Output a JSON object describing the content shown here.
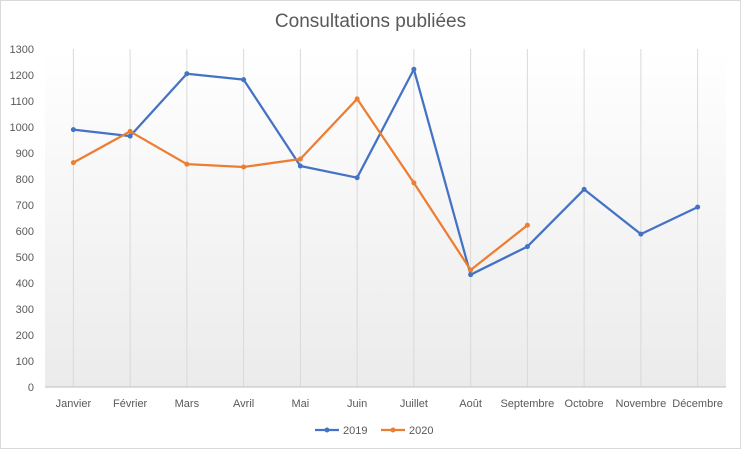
{
  "chart_data": {
    "type": "line",
    "title": "Consultations publiées",
    "xlabel": "",
    "ylabel": "",
    "categories": [
      "Janvier",
      "Février",
      "Mars",
      "Avril",
      "Mai",
      "Juin",
      "Juillet",
      "Août",
      "Septembre",
      "Octobre",
      "Novembre",
      "Décembre"
    ],
    "ylim": [
      0,
      1300
    ],
    "yticks": [
      0,
      100,
      200,
      300,
      400,
      500,
      600,
      700,
      800,
      900,
      1000,
      1100,
      1200,
      1300
    ],
    "grid": "vertical",
    "legend_position": "bottom",
    "series": [
      {
        "name": "2019",
        "color": "#4472c4",
        "values": [
          990,
          965,
          1205,
          1182,
          850,
          805,
          1222,
          432,
          540,
          760,
          588,
          692
        ]
      },
      {
        "name": "2020",
        "color": "#ed7d31",
        "values": [
          863,
          983,
          857,
          846,
          877,
          1108,
          785,
          450,
          622,
          null,
          null,
          null
        ]
      }
    ]
  }
}
